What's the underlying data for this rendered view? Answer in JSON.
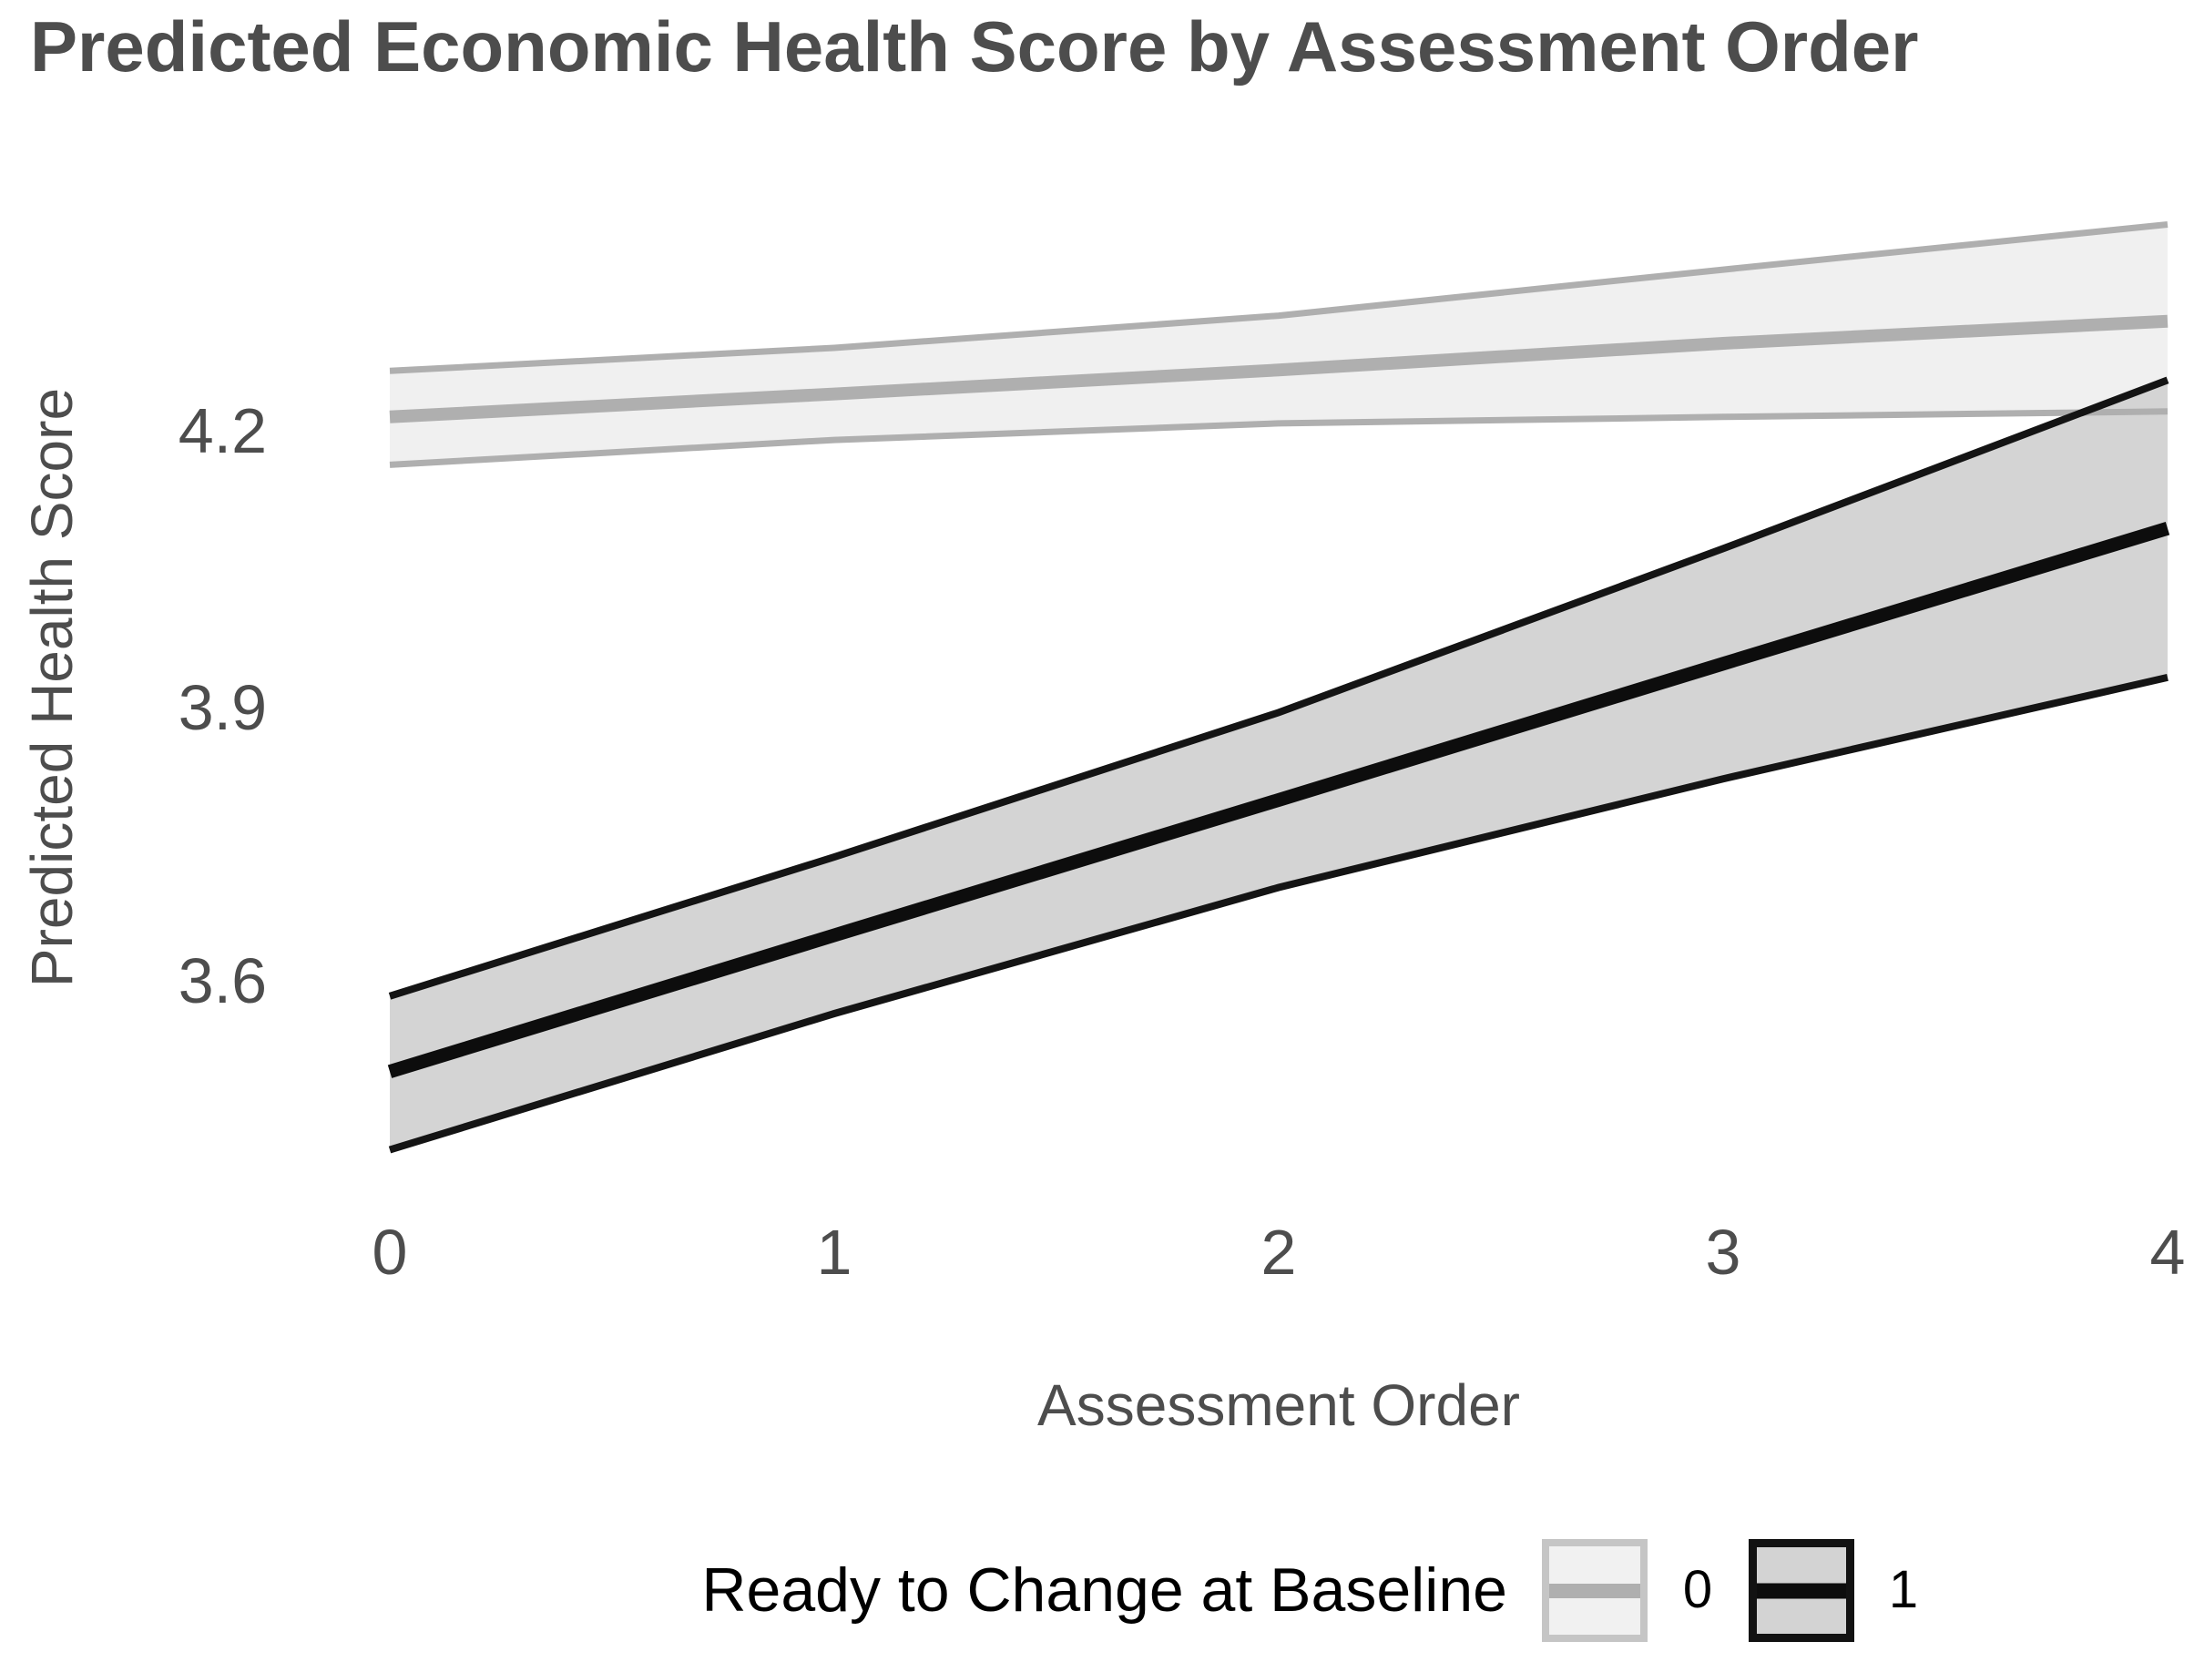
{
  "chart_data": {
    "type": "line",
    "title": "Predicted Economic Health Score by Assessment Order",
    "xlabel": "Assessment Order",
    "ylabel": "Predicted Health Score",
    "x": [
      0,
      1,
      2,
      3,
      4
    ],
    "x_tick_labels": [
      "0",
      "1",
      "2",
      "3",
      "4"
    ],
    "y_tick_labels": [
      "4.2",
      "3.9",
      "3.6"
    ],
    "y_tick_values": [
      4.2,
      3.9,
      3.6
    ],
    "ylim": [
      3.35,
      4.52
    ],
    "xlim": [
      0,
      4
    ],
    "grid": false,
    "legend_title": "Ready to Change at Baseline",
    "legend_position": "bottom",
    "series": [
      {
        "name": "0",
        "values": [
          4.215,
          4.24,
          4.266,
          4.295,
          4.319
        ],
        "ci_upper": [
          4.265,
          4.29,
          4.325,
          4.375,
          4.424
        ],
        "ci_lower": [
          4.163,
          4.19,
          4.208,
          4.215,
          4.221
        ],
        "line_color": "#AFAFAF",
        "border_color": "#AFAFAF",
        "fill_color": "#F0F0F0"
      },
      {
        "name": "1",
        "values": [
          3.504,
          3.652,
          3.799,
          3.947,
          4.094
        ],
        "ci_upper": [
          3.586,
          3.737,
          3.894,
          4.072,
          4.255
        ],
        "ci_lower": [
          3.419,
          3.567,
          3.704,
          3.822,
          3.932
        ],
        "line_color": "#0D0D0D",
        "border_color": "#141414",
        "fill_color": "#D4D4D4"
      }
    ],
    "legend_entries": [
      {
        "label": "0",
        "line_color": "#AFAFAF",
        "fill_color": "#F1F1F1",
        "border_color": "#C5C5C5"
      },
      {
        "label": "1",
        "line_color": "#0D0D0D",
        "fill_color": "#D3D3D3",
        "border_color": "#121212"
      }
    ],
    "text_colors": {
      "title": "#4D4D4D",
      "axis_text": "#4D4D4D",
      "legend_text": "#000000"
    },
    "background": "#FFFFFF"
  }
}
